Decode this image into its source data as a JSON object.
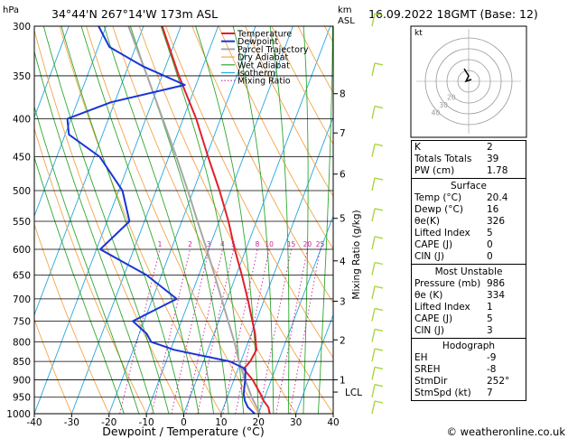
{
  "header": {
    "hpa_unit": "hPa",
    "location": "34°44'N  267°14'W  173m  ASL",
    "km_unit": "km",
    "asl_unit": "ASL",
    "datetime": "16.09.2022  18GMT  (Base: 12)"
  },
  "colors": {
    "temperature": "#e0202a",
    "dewpoint": "#1a35d6",
    "parcel": "#a7a7a7",
    "dry_adiabat": "#f5a54a",
    "wet_adiabat": "#2fa82f",
    "isotherm": "#25a7e0",
    "mixing_ratio": "#cc2299",
    "wind": "#a8d640"
  },
  "chart_data": {
    "type": "line",
    "title": "",
    "xlabel": "Dewpoint / Temperature (°C)",
    "ylabel": "",
    "x_ticks": [
      -40,
      -30,
      -20,
      -10,
      0,
      10,
      20,
      30,
      40
    ],
    "xlim": [
      -40,
      40
    ],
    "pressure_ticks": [
      300,
      350,
      400,
      450,
      500,
      550,
      600,
      650,
      700,
      750,
      800,
      850,
      900,
      950,
      1000
    ],
    "ylim": [
      1000,
      300
    ],
    "skew_deg_per_log_decade": 75,
    "km_ticks": [
      {
        "label": "8",
        "p": 370
      },
      {
        "label": "7",
        "p": 418
      },
      {
        "label": "6",
        "p": 475
      },
      {
        "label": "5",
        "p": 545
      },
      {
        "label": "4",
        "p": 622
      },
      {
        "label": "3",
        "p": 705
      },
      {
        "label": "2",
        "p": 795
      },
      {
        "label": "1",
        "p": 900
      },
      {
        "label": "LCL",
        "p": 935
      }
    ],
    "mixing_ratio_axis_label": "Mixing Ratio (g/kg)",
    "mixing_ratio_labels": [
      "1",
      "2",
      "3",
      "4",
      "5",
      "8",
      "10",
      "15",
      "20",
      "25"
    ],
    "mixing_ratio_values": [
      1,
      2,
      3,
      4,
      5,
      8,
      10,
      15,
      20,
      25
    ],
    "legend": [
      "Temperature",
      "Dewpoint",
      "Parcel Trajectory",
      "Dry Adiabat",
      "Wet Adiabat",
      "Isotherm",
      "Mixing Ratio"
    ],
    "series": [
      {
        "name": "Temperature",
        "points": [
          [
            1000,
            23
          ],
          [
            980,
            22
          ],
          [
            960,
            20
          ],
          [
            940,
            18.5
          ],
          [
            900,
            15
          ],
          [
            870,
            11.5
          ],
          [
            850,
            12.5
          ],
          [
            820,
            13
          ],
          [
            800,
            12
          ],
          [
            780,
            11
          ],
          [
            750,
            9
          ],
          [
            700,
            5.5
          ],
          [
            650,
            1.5
          ],
          [
            600,
            -3
          ],
          [
            550,
            -7.5
          ],
          [
            500,
            -13
          ],
          [
            450,
            -19.5
          ],
          [
            400,
            -26.5
          ],
          [
            350,
            -35.5
          ],
          [
            300,
            -45
          ]
        ]
      },
      {
        "name": "Dewpoint",
        "points": [
          [
            1000,
            19
          ],
          [
            980,
            16.5
          ],
          [
            960,
            15
          ],
          [
            940,
            14
          ],
          [
            900,
            13
          ],
          [
            870,
            12
          ],
          [
            850,
            7
          ],
          [
            820,
            -9
          ],
          [
            800,
            -16
          ],
          [
            780,
            -18
          ],
          [
            750,
            -23
          ],
          [
            700,
            -13.5
          ],
          [
            650,
            -24
          ],
          [
            600,
            -39
          ],
          [
            550,
            -34
          ],
          [
            500,
            -39
          ],
          [
            450,
            -48.5
          ],
          [
            420,
            -59
          ],
          [
            400,
            -61
          ],
          [
            380,
            -51
          ],
          [
            360,
            -33
          ],
          [
            340,
            -46
          ],
          [
            320,
            -57
          ],
          [
            300,
            -62
          ]
        ]
      },
      {
        "name": "Parcel Trajectory",
        "points": [
          [
            1000,
            20.4
          ],
          [
            950,
            16.5
          ],
          [
            935,
            15.5
          ],
          [
            900,
            13
          ],
          [
            850,
            9.5
          ],
          [
            800,
            6.3
          ],
          [
            750,
            2.5
          ],
          [
            700,
            -1.5
          ],
          [
            650,
            -5.8
          ],
          [
            600,
            -10.5
          ],
          [
            550,
            -15.8
          ],
          [
            500,
            -21.5
          ],
          [
            450,
            -28
          ],
          [
            400,
            -35.5
          ],
          [
            350,
            -44
          ],
          [
            300,
            -54
          ]
        ]
      }
    ]
  },
  "hodograph": {
    "label": "kt",
    "ring_labels": [
      "20",
      "30",
      "40"
    ]
  },
  "indices": {
    "k": {
      "label": "K",
      "value": "2"
    },
    "tt": {
      "label": "Totals Totals",
      "value": "39"
    },
    "pw": {
      "label": "PW (cm)",
      "value": "1.78"
    }
  },
  "surface": {
    "title": "Surface",
    "temp": {
      "label": "Temp (°C)",
      "value": "20.4"
    },
    "dewp": {
      "label": "Dewp (°C)",
      "value": "16"
    },
    "thetae": {
      "label": "θe(K)",
      "value": "326"
    },
    "li": {
      "label": "Lifted Index",
      "value": "5"
    },
    "cape": {
      "label": "CAPE (J)",
      "value": "0"
    },
    "cin": {
      "label": "CIN (J)",
      "value": "0"
    }
  },
  "most_unstable": {
    "title": "Most Unstable",
    "pressure": {
      "label": "Pressure (mb)",
      "value": "986"
    },
    "thetae": {
      "label": "θe (K)",
      "value": "334"
    },
    "li": {
      "label": "Lifted Index",
      "value": "1"
    },
    "cape": {
      "label": "CAPE (J)",
      "value": "5"
    },
    "cin": {
      "label": "CIN (J)",
      "value": "3"
    }
  },
  "hodograph_table": {
    "title": "Hodograph",
    "eh": {
      "label": "EH",
      "value": "-9"
    },
    "sreh": {
      "label": "SREH",
      "value": "-8"
    },
    "stmdir": {
      "label": "StmDir",
      "value": "252°"
    },
    "stmspd": {
      "label": "StmSpd (kt)",
      "value": "7"
    }
  },
  "footer": {
    "copyright": "© weatheronline.co.uk"
  }
}
